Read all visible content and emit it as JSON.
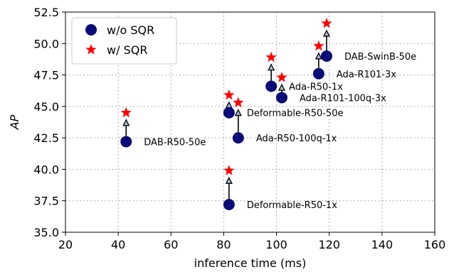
{
  "chart_data": {
    "type": "scatter",
    "xlabel": "inference time (ms)",
    "ylabel": "AP",
    "xlim": [
      20,
      160
    ],
    "ylim": [
      35.0,
      52.5
    ],
    "xticks": [
      20,
      40,
      60,
      80,
      100,
      120,
      140,
      160
    ],
    "yticks": [
      "35.0",
      "37.5",
      "40.0",
      "42.5",
      "45.0",
      "47.5",
      "50.0",
      "52.5"
    ],
    "grid": true,
    "legend_position": "top-left",
    "series": [
      {
        "name": "w/o SQR",
        "marker": "circle",
        "color": "#0a0a78"
      },
      {
        "name": "w/ SQR",
        "marker": "star",
        "color": "#ff0000"
      }
    ],
    "models": [
      {
        "label": "DAB-R50-50e",
        "x": 43,
        "y_wo": 42.2,
        "y_w": 44.5
      },
      {
        "label": "Deformable-R50-1x",
        "x": 82,
        "y_wo": 37.2,
        "y_w": 39.9
      },
      {
        "label": "Deformable-R50-50e",
        "x": 82,
        "y_wo": 44.5,
        "y_w": 45.9
      },
      {
        "label": "Ada-R50-100q-1x",
        "x": 85.5,
        "y_wo": 42.5,
        "y_w": 45.3
      },
      {
        "label": "Ada-R50-1x",
        "x": 98,
        "y_wo": 46.6,
        "y_w": 48.9
      },
      {
        "label": "Ada-R101-100q-3x",
        "x": 102,
        "y_wo": 45.7,
        "y_w": 47.3
      },
      {
        "label": "Ada-R101-3x",
        "x": 116,
        "y_wo": 47.6,
        "y_w": 49.8
      },
      {
        "label": "DAB-SwinB-50e",
        "x": 119,
        "y_wo": 49.0,
        "y_w": 51.6
      }
    ]
  }
}
